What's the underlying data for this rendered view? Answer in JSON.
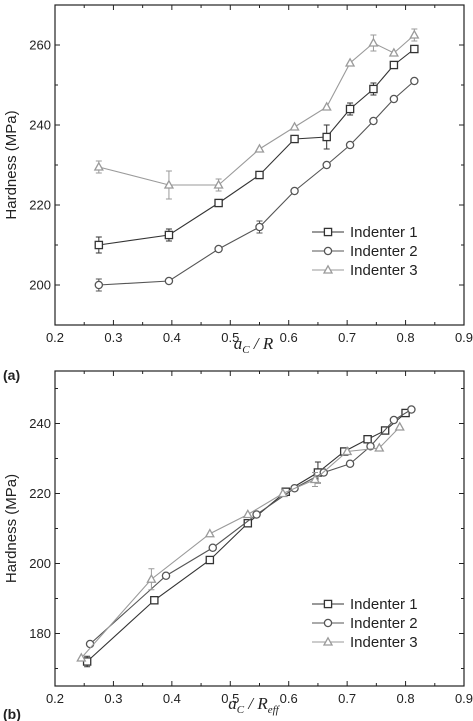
{
  "chart_data": [
    {
      "type": "line",
      "panel_label": "(a)",
      "ylabel": "Hardness (MPa)",
      "xlabel_main": "a",
      "xlabel_sub": "C",
      "xlabel_rest": " / R",
      "xlim": [
        0.2,
        0.9
      ],
      "ylim": [
        190,
        270
      ],
      "xticks": [
        "0.2",
        "0.3",
        "0.4",
        "0.5",
        "0.6",
        "0.7",
        "0.8",
        "0.9"
      ],
      "yticks": [
        "200",
        "220",
        "240",
        "260"
      ],
      "legend_position": "bottom-right",
      "series": [
        {
          "name": "Indenter 1",
          "marker": "square",
          "color": "#333333",
          "x": [
            0.275,
            0.395,
            0.48,
            0.55,
            0.61,
            0.665,
            0.705,
            0.745,
            0.78,
            0.815
          ],
          "y": [
            210,
            212.5,
            220.5,
            227.5,
            236.5,
            237,
            244,
            249,
            255,
            259
          ],
          "err": [
            2,
            1.5,
            0,
            0,
            0,
            3,
            1.5,
            1.5,
            0,
            0
          ]
        },
        {
          "name": "Indenter 2",
          "marker": "circle",
          "color": "#555555",
          "x": [
            0.275,
            0.395,
            0.48,
            0.55,
            0.61,
            0.665,
            0.705,
            0.745,
            0.78,
            0.815
          ],
          "y": [
            200,
            201,
            209,
            214.5,
            223.5,
            230,
            235,
            241,
            246.5,
            251
          ],
          "err": [
            1.5,
            0,
            0,
            1.5,
            0,
            0,
            0,
            0,
            0,
            0
          ]
        },
        {
          "name": "Indenter 3",
          "marker": "triangle",
          "color": "#9a9a9a",
          "x": [
            0.275,
            0.395,
            0.48,
            0.55,
            0.61,
            0.665,
            0.705,
            0.745,
            0.78,
            0.815
          ],
          "y": [
            229.5,
            225,
            225,
            234,
            239.5,
            244.5,
            255.5,
            260.5,
            258,
            262.5
          ],
          "err": [
            1.5,
            3.5,
            1.5,
            0,
            0,
            0,
            0,
            2,
            0,
            1.5
          ]
        }
      ]
    },
    {
      "type": "line",
      "panel_label": "(b)",
      "ylabel": "Hardness (MPa)",
      "xlabel_main": "a",
      "xlabel_sub": "C",
      "xlabel_rest": " / R",
      "xlabel_rest_sub": "eff",
      "xlim": [
        0.2,
        0.9
      ],
      "ylim": [
        165,
        255
      ],
      "xticks": [
        "0.2",
        "0.3",
        "0.4",
        "0.5",
        "0.6",
        "0.7",
        "0.8",
        "0.9"
      ],
      "yticks": [
        "180",
        "200",
        "220",
        "240"
      ],
      "legend_position": "bottom-right",
      "series": [
        {
          "name": "Indenter 1",
          "marker": "square",
          "color": "#333333",
          "x": [
            0.255,
            0.37,
            0.465,
            0.53,
            0.595,
            0.65,
            0.695,
            0.735,
            0.765,
            0.8
          ],
          "y": [
            172,
            189.5,
            201,
            211.5,
            220.5,
            226,
            232,
            235.5,
            238,
            243
          ],
          "err": [
            1.5,
            0,
            0,
            0,
            0,
            3,
            0,
            0,
            0,
            0
          ]
        },
        {
          "name": "Indenter 2",
          "marker": "circle",
          "color": "#555555",
          "x": [
            0.26,
            0.39,
            0.47,
            0.545,
            0.61,
            0.66,
            0.705,
            0.74,
            0.78,
            0.81
          ],
          "y": [
            177,
            196.5,
            204.5,
            214,
            221.5,
            226,
            228.5,
            233.5,
            241,
            244
          ],
          "err": [
            0,
            0,
            0,
            0,
            0,
            0,
            0,
            0,
            0,
            0
          ]
        },
        {
          "name": "Indenter 3",
          "marker": "triangle",
          "color": "#9a9a9a",
          "x": [
            0.245,
            0.365,
            0.465,
            0.53,
            0.59,
            0.645,
            0.7,
            0.755,
            0.79
          ],
          "y": [
            173,
            195.5,
            208.5,
            214,
            220,
            224,
            232,
            233,
            239
          ],
          "err": [
            0,
            3,
            0,
            0,
            0,
            2,
            0,
            0,
            0
          ]
        }
      ]
    }
  ]
}
